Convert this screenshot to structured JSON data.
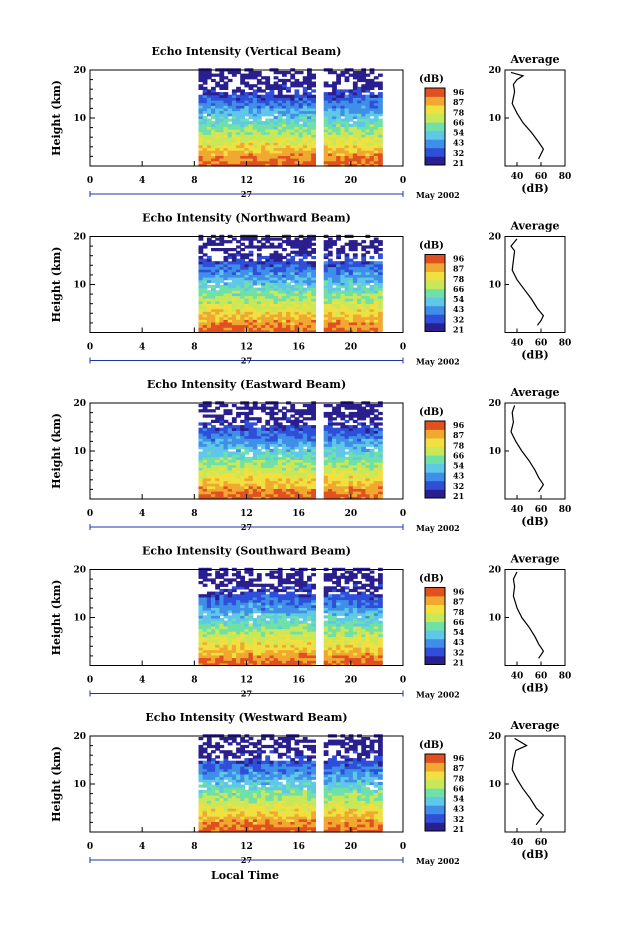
{
  "chart_data": {
    "type": "heatmap",
    "panels": [
      {
        "title": "Echo Intensity (Vertical Beam)",
        "profile": [
          [
            35,
            19.5
          ],
          [
            45,
            18.8
          ],
          [
            40,
            18
          ],
          [
            37,
            17
          ],
          [
            38,
            15.5
          ],
          [
            36,
            13
          ],
          [
            40,
            11
          ],
          [
            45,
            9
          ],
          [
            52,
            7
          ],
          [
            58,
            5
          ],
          [
            62,
            3.5
          ],
          [
            60,
            2.5
          ],
          [
            58,
            1.5
          ]
        ],
        "profile_xticks": [
          "40",
          "60",
          "80"
        ]
      },
      {
        "title": "Echo Intensity (Northward Beam)",
        "profile": [
          [
            40,
            19.5
          ],
          [
            35,
            18
          ],
          [
            38,
            17
          ],
          [
            37,
            15
          ],
          [
            36,
            13
          ],
          [
            40,
            11
          ],
          [
            46,
            9
          ],
          [
            52,
            7
          ],
          [
            57,
            5
          ],
          [
            62,
            3.5
          ],
          [
            60,
            2.5
          ],
          [
            57,
            1.5
          ]
        ],
        "profile_xticks": [
          "40",
          "60",
          "80"
        ]
      },
      {
        "title": "Echo Intensity (Eastward Beam)",
        "profile": [
          [
            38,
            19.5
          ],
          [
            36,
            18
          ],
          [
            37,
            16
          ],
          [
            35,
            14
          ],
          [
            39,
            12
          ],
          [
            44,
            10
          ],
          [
            50,
            8
          ],
          [
            55,
            6
          ],
          [
            58,
            4.5
          ],
          [
            62,
            3
          ],
          [
            60,
            2.2
          ],
          [
            58,
            1.5
          ]
        ],
        "profile_xticks": [
          "40",
          "60",
          "80"
        ]
      },
      {
        "title": "Echo Intensity (Southward Beam)",
        "profile": [
          [
            40,
            19.5
          ],
          [
            37,
            18
          ],
          [
            38,
            16.5
          ],
          [
            37,
            14.5
          ],
          [
            40,
            12
          ],
          [
            44,
            10
          ],
          [
            50,
            8
          ],
          [
            55,
            6
          ],
          [
            58,
            4.5
          ],
          [
            62,
            3
          ],
          [
            60,
            2.2
          ],
          [
            58,
            1.5
          ]
        ],
        "profile_xticks": [
          "40",
          "60",
          "80"
        ]
      },
      {
        "title": "Echo Intensity (Westward Beam)",
        "profile": [
          [
            38,
            19.5
          ],
          [
            48,
            18
          ],
          [
            39,
            17
          ],
          [
            37,
            15
          ],
          [
            36,
            13
          ],
          [
            40,
            11
          ],
          [
            45,
            9
          ],
          [
            51,
            7
          ],
          [
            56,
            5
          ],
          [
            62,
            3.5
          ],
          [
            59,
            2.5
          ],
          [
            56,
            1.5
          ]
        ],
        "profile_xticks": [
          "40",
          "60"
        ]
      }
    ],
    "time_ticks": [
      "0",
      "4",
      "8",
      "12",
      "16",
      "20",
      "0"
    ],
    "height_ticks": [
      "20",
      "10"
    ],
    "ylabel": "Height (km)",
    "xlabel": "Local Time",
    "date_label": "27",
    "month_label": "May 2002",
    "colorbar_unit": "(dB)",
    "colorbar_ticks": [
      "96",
      "87",
      "78",
      "66",
      "54",
      "43",
      "32",
      "21"
    ],
    "profile_title": "Average",
    "profile_xlabel": "(dB)",
    "profile_xlim": [
      30,
      80
    ],
    "profile_ylim": [
      0,
      20
    ],
    "heat_xlim": [
      0,
      24
    ],
    "heat_ylim": [
      0,
      20
    ],
    "data_gaps": [
      [
        0,
        8.3
      ],
      [
        17.2,
        17.8
      ],
      [
        22.5,
        24
      ]
    ],
    "colors": [
      "#2a1f8f",
      "#2f4fd9",
      "#3f8fe8",
      "#5fc7e8",
      "#6fe0a8",
      "#c8e85a",
      "#f0e040",
      "#f0a830",
      "#e05020"
    ]
  }
}
